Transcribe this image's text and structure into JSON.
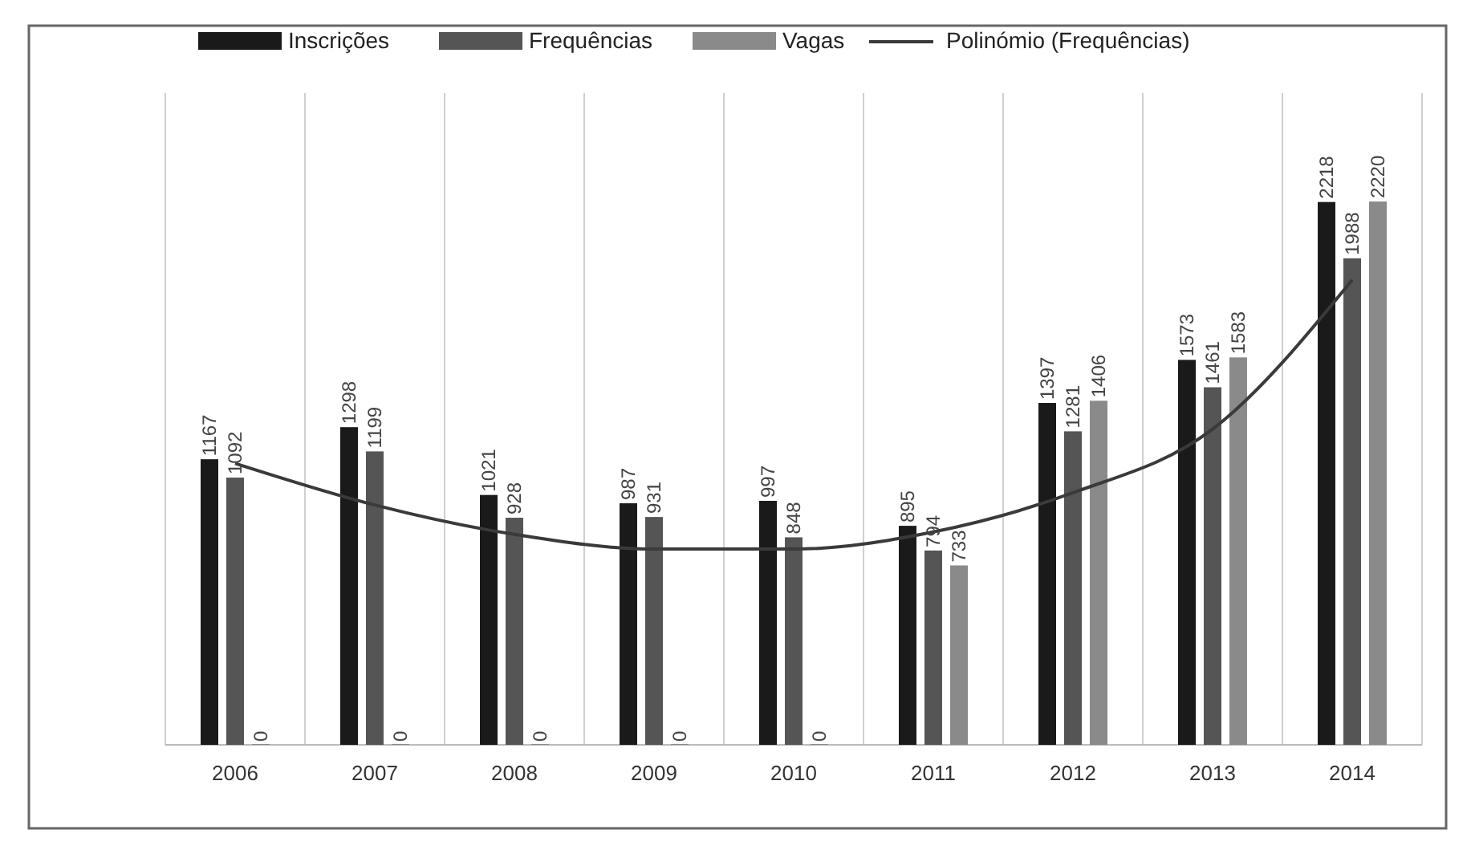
{
  "chart_data": {
    "type": "bar",
    "categories": [
      "2006",
      "2007",
      "2008",
      "2009",
      "2010",
      "2011",
      "2012",
      "2013",
      "2014"
    ],
    "series": [
      {
        "name": "Inscrições",
        "color": "#1a1a1a",
        "values": [
          1167,
          1298,
          1021,
          987,
          997,
          895,
          1397,
          1573,
          2218
        ],
        "value_labels": [
          "1167",
          "1298",
          "1021",
          "987",
          "997",
          "895",
          "1397",
          "1573",
          "2218"
        ]
      },
      {
        "name": "Frequências",
        "color": "#555555",
        "values": [
          1092,
          1199,
          928,
          931,
          848,
          794,
          1281,
          1461,
          1988
        ],
        "value_labels": [
          "1092",
          "1199",
          "928",
          "931",
          "848",
          "794",
          "1281",
          "1461",
          "1988"
        ]
      },
      {
        "name": "Vagas",
        "color": "#8a8a8a",
        "values": [
          0,
          0,
          0,
          0,
          0,
          733,
          1406,
          1583,
          2220
        ],
        "value_labels": [
          "0",
          "0",
          "0",
          "0",
          "0",
          "733",
          "1406",
          "1583",
          "2220"
        ]
      },
      {
        "name": "Polinómio (Frequências)",
        "type": "line",
        "color": "#3a3a3a",
        "line_style": "solid",
        "values": [
          1150,
          980,
          860,
          800,
          800,
          870,
          1030,
          1290,
          1900
        ]
      }
    ],
    "grid": "x",
    "legend": "top"
  }
}
